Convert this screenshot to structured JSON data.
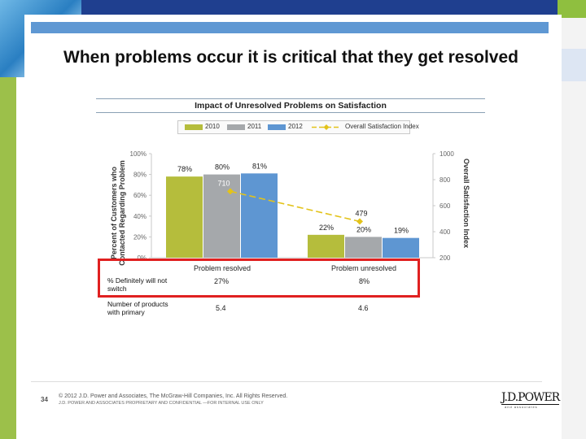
{
  "slide": {
    "title": "When problems occur it is critical that they get resolved",
    "page_number": "34",
    "footer_line1": "© 2012 J.D. Power and Associates, The McGraw-Hill Companies, Inc. All Rights Reserved.",
    "footer_line2": "J.D. POWER AND ASSOCIATES PROPRIETARY AND CONFIDENTIAL —FOR INTERNAL USE ONLY",
    "logo_text": "J.D.POWER",
    "logo_sub": "and associates"
  },
  "chart_data": {
    "type": "bar",
    "title": "Impact of Unresolved Problems on Satisfaction",
    "categories": [
      "Problem resolved",
      "Problem unresolved"
    ],
    "series": [
      {
        "name": "2010",
        "values": [
          78,
          22
        ],
        "labels": [
          "78%",
          "22%"
        ],
        "color": "#b5bd3c"
      },
      {
        "name": "2011",
        "values": [
          80,
          20
        ],
        "labels": [
          "80%",
          "20%"
        ],
        "color": "#a5a8ab"
      },
      {
        "name": "2012",
        "values": [
          81,
          19
        ],
        "labels": [
          "81%",
          "19%"
        ],
        "color": "#5e96d2"
      }
    ],
    "line_series": {
      "name": "Overall Satisfaction Index",
      "values": [
        710,
        479
      ],
      "labels": [
        "710",
        "479"
      ],
      "color": "#e3c31a"
    },
    "ylabel": "Percent of Customers who Contacted Regarding Problem",
    "y2label": "Overall Satisfaction Index",
    "ylim": [
      0,
      100
    ],
    "y2lim": [
      200,
      1000
    ],
    "yticks": [
      "100%",
      "80%",
      "60%",
      "40%",
      "20%",
      "0%"
    ],
    "y2ticks": [
      "1000",
      "800",
      "600",
      "400",
      "200"
    ],
    "grid": false,
    "legend_position": "top"
  },
  "table": {
    "rows": [
      {
        "label": "% Definitely will not switch",
        "values": [
          "27%",
          "8%"
        ]
      },
      {
        "label": "Number of products with primary",
        "values": [
          "5.4",
          "4.6"
        ]
      }
    ]
  }
}
